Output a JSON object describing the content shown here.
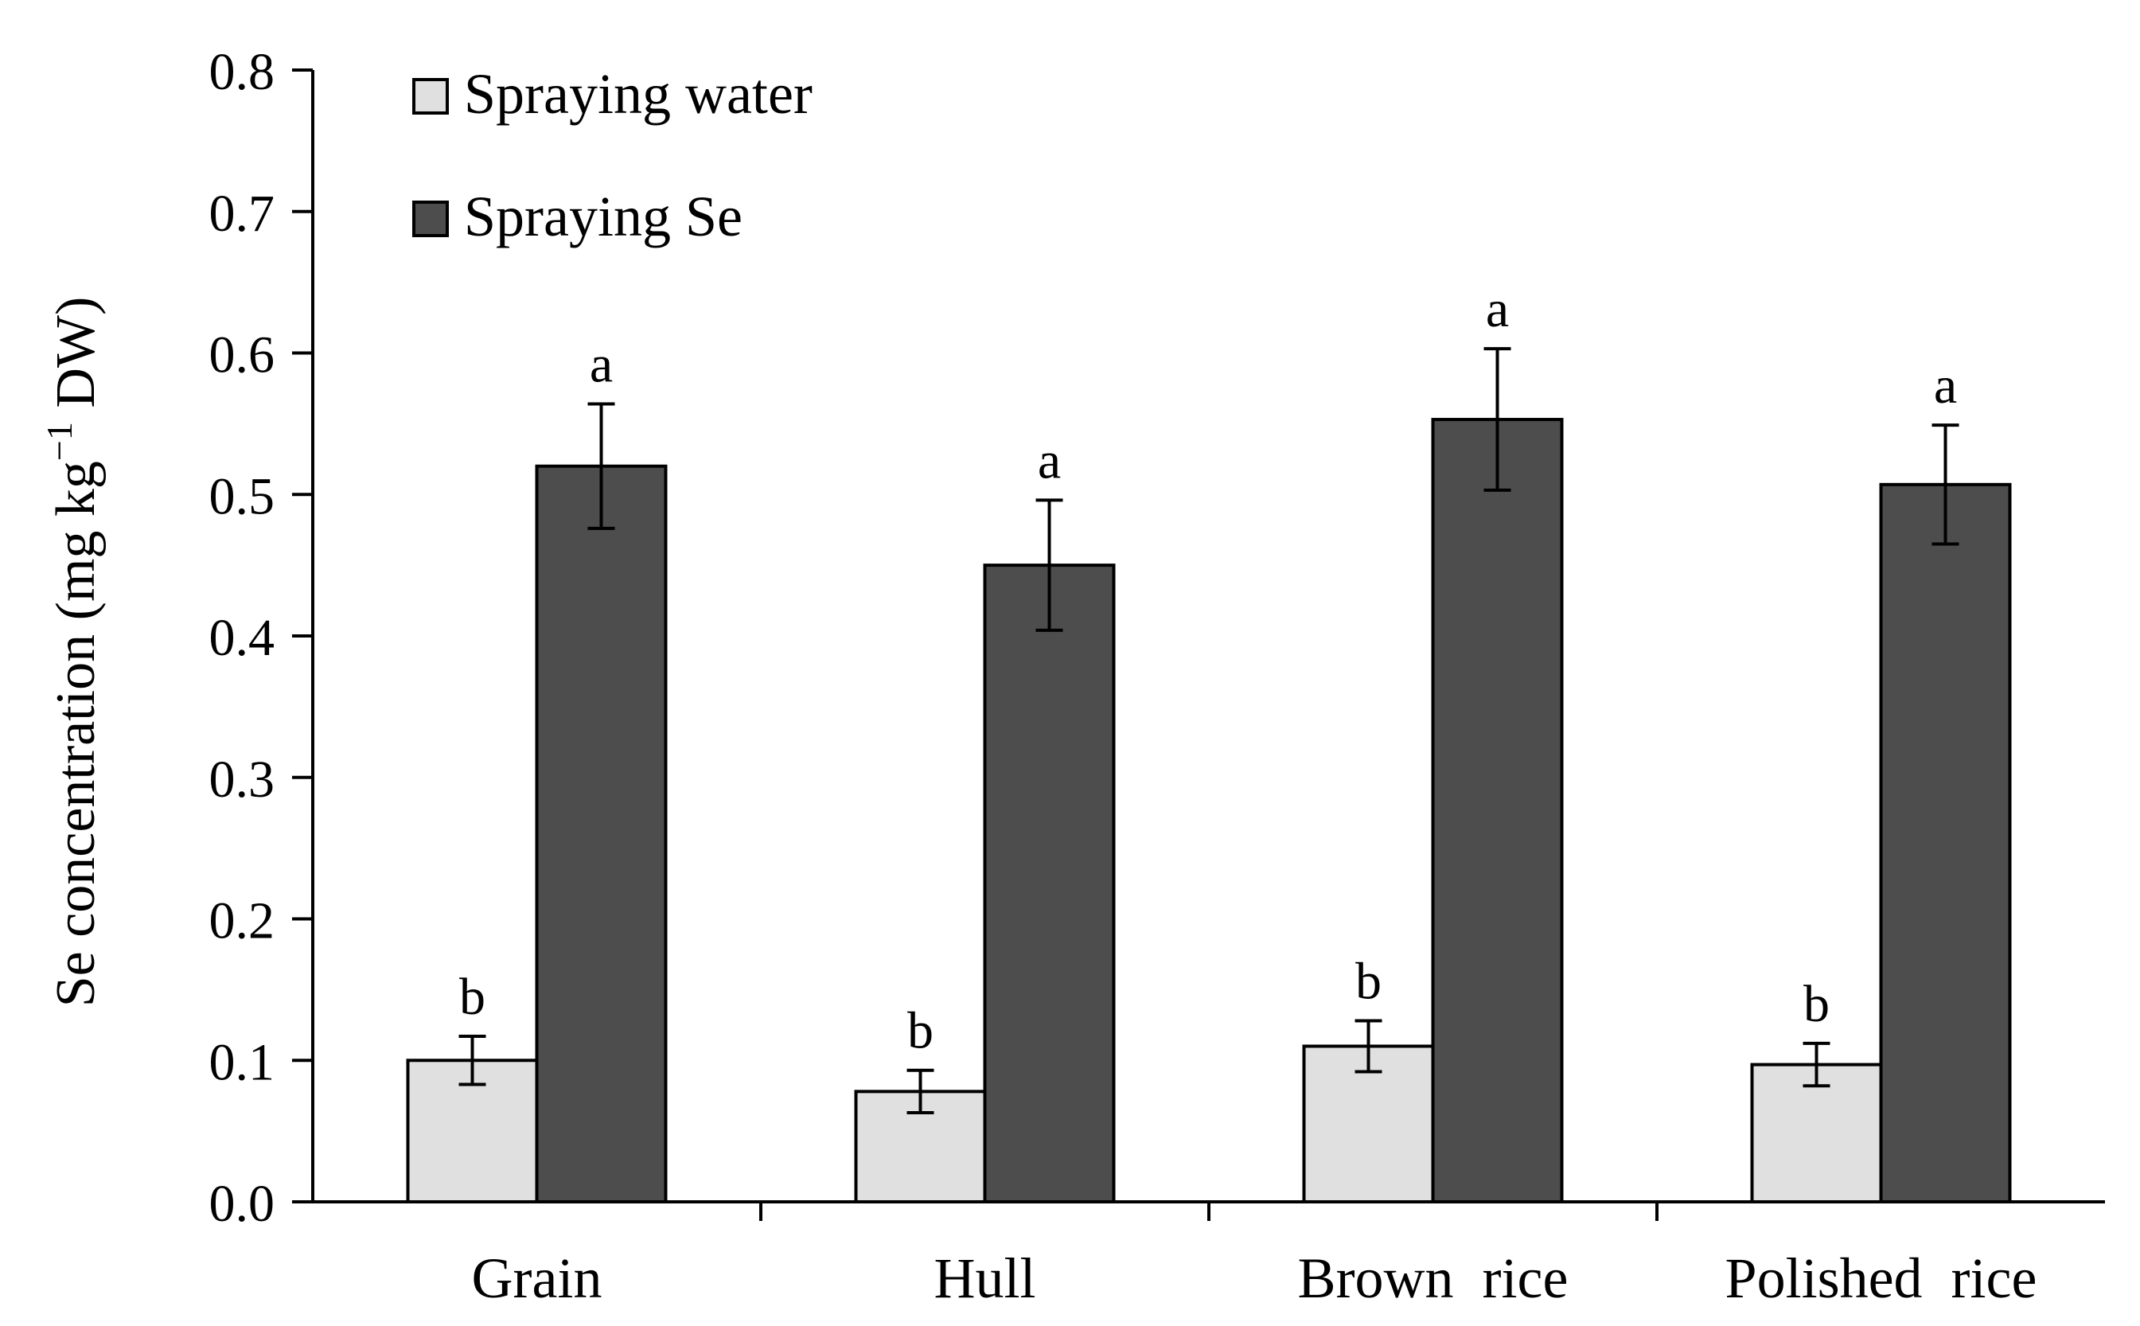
{
  "chart_data": {
    "type": "bar",
    "title": "",
    "xlabel": "",
    "ylabel": "Se concentration (mg kg",
    "ylabel_superscript": "−1",
    "ylabel_suffix": " DW)",
    "ylim": [
      0,
      0.8
    ],
    "yticks": [
      "0.0",
      "0.1",
      "0.2",
      "0.3",
      "0.4",
      "0.5",
      "0.6",
      "0.7",
      "0.8"
    ],
    "categories": [
      "Grain",
      "Hull",
      "Brown  rice",
      "Polished  rice"
    ],
    "series": [
      {
        "name": "Spraying water",
        "color": "#e0e0e0",
        "values": [
          0.1,
          0.078,
          0.11,
          0.097
        ],
        "errors": [
          0.017,
          0.015,
          0.018,
          0.015
        ],
        "significance": [
          "b",
          "b",
          "b",
          "b"
        ]
      },
      {
        "name": "Spraying Se",
        "color": "#4d4d4d",
        "values": [
          0.52,
          0.45,
          0.553,
          0.507
        ],
        "errors": [
          0.044,
          0.046,
          0.05,
          0.042
        ],
        "significance": [
          "a",
          "a",
          "a",
          "a"
        ]
      }
    ],
    "legend_position": "top-left"
  }
}
